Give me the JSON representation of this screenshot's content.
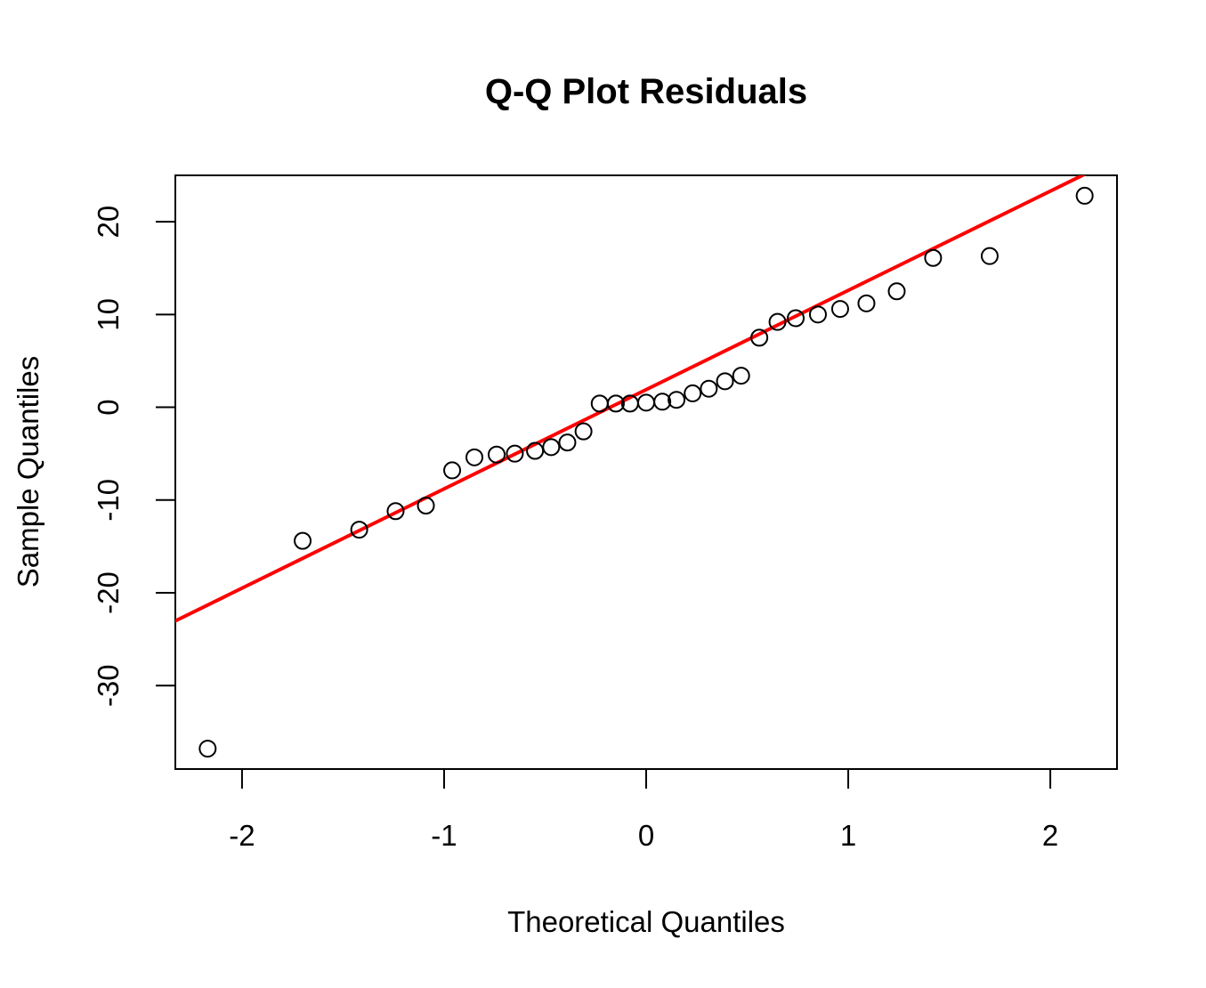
{
  "chart_data": {
    "type": "scatter",
    "title": "Q-Q Plot Residuals",
    "xlabel": "Theoretical Quantiles",
    "ylabel": "Sample Quantiles",
    "xlim": [
      -2.33,
      2.33
    ],
    "ylim": [
      -39,
      25
    ],
    "x_ticks": [
      -2,
      -1,
      0,
      1,
      2
    ],
    "x_tick_labels": [
      "-2",
      "-1",
      "0",
      "1",
      "2"
    ],
    "y_ticks": [
      -30,
      -20,
      -10,
      0,
      10,
      20
    ],
    "y_tick_labels": [
      "-30",
      "-20",
      "-10",
      "0",
      "10",
      "20"
    ],
    "grid": false,
    "point_color": "#000000",
    "line_color": "#ff0000",
    "points": [
      [
        -2.17,
        -36.8
      ],
      [
        -1.7,
        -14.4
      ],
      [
        -1.42,
        -13.2
      ],
      [
        -1.24,
        -11.2
      ],
      [
        -1.09,
        -10.6
      ],
      [
        -0.96,
        -6.8
      ],
      [
        -0.85,
        -5.4
      ],
      [
        -0.74,
        -5.1
      ],
      [
        -0.65,
        -5.0
      ],
      [
        -0.55,
        -4.7
      ],
      [
        -0.47,
        -4.3
      ],
      [
        -0.39,
        -3.8
      ],
      [
        -0.31,
        -2.6
      ],
      [
        -0.23,
        0.4
      ],
      [
        -0.15,
        0.4
      ],
      [
        -0.08,
        0.4
      ],
      [
        0.0,
        0.5
      ],
      [
        0.08,
        0.6
      ],
      [
        0.15,
        0.8
      ],
      [
        0.23,
        1.5
      ],
      [
        0.31,
        2.0
      ],
      [
        0.39,
        2.8
      ],
      [
        0.47,
        3.4
      ],
      [
        0.56,
        7.5
      ],
      [
        0.65,
        9.2
      ],
      [
        0.74,
        9.6
      ],
      [
        0.85,
        10.0
      ],
      [
        0.96,
        10.6
      ],
      [
        1.09,
        11.2
      ],
      [
        1.24,
        12.5
      ],
      [
        1.42,
        16.1
      ],
      [
        1.7,
        16.3
      ],
      [
        2.17,
        22.8
      ]
    ],
    "reference_line": {
      "intercept": 1.9,
      "slope": 10.7
    }
  }
}
